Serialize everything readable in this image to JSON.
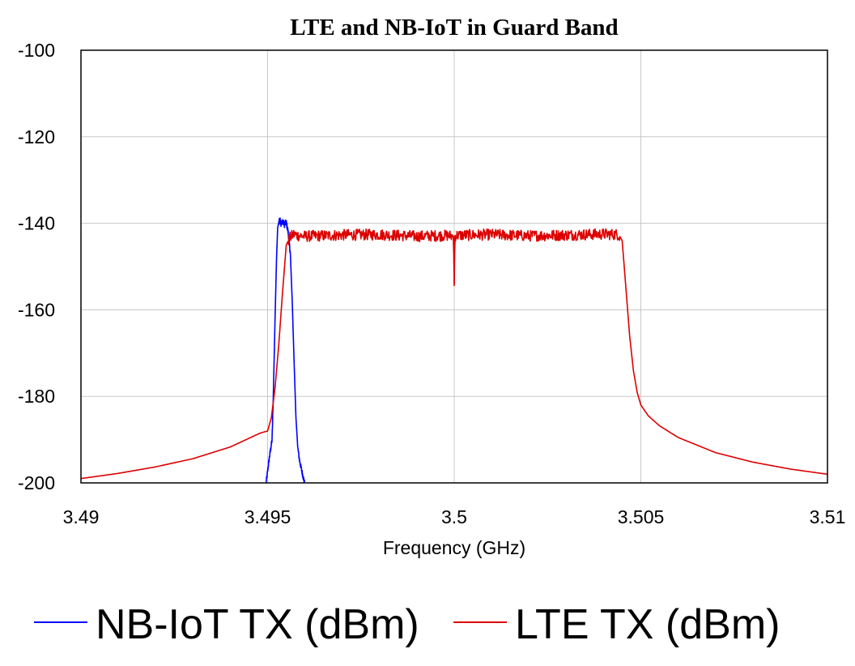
{
  "chart_data": {
    "type": "line",
    "title": "LTE and NB-IoT in Guard Band",
    "xlabel": "Frequency (GHz)",
    "ylabel": "",
    "xlim": [
      3.49,
      3.51
    ],
    "ylim": [
      -200,
      -100
    ],
    "x_ticks": [
      3.49,
      3.495,
      3.5,
      3.505,
      3.51
    ],
    "x_tick_labels": [
      "3.49",
      "3.495",
      "3.5",
      "3.505",
      "3.51"
    ],
    "y_ticks": [
      -100,
      -120,
      -140,
      -160,
      -180,
      -200
    ],
    "y_tick_labels": [
      "-100",
      "-120",
      "-140",
      "-160",
      "-180",
      "-200"
    ],
    "grid": true,
    "legend_position": "bottom",
    "series": [
      {
        "name": "NB-IoT TX (dBm)",
        "color": "#0000ff",
        "x": [
          3.49496,
          3.49505,
          3.49512,
          3.49515,
          3.4952,
          3.49524,
          3.49527,
          3.49532,
          3.49536,
          3.49541,
          3.49545,
          3.4955,
          3.49555,
          3.49561,
          3.49566,
          3.49571,
          3.49576,
          3.49581,
          3.49586,
          3.49591,
          3.49595,
          3.49599
        ],
        "y": [
          -200,
          -194,
          -190,
          -181,
          -162,
          -148,
          -141,
          -139,
          -140,
          -139.5,
          -140.3,
          -139.8,
          -142,
          -147,
          -158,
          -172,
          -185,
          -192,
          -195,
          -197,
          -198.5,
          -200
        ]
      },
      {
        "name": "LTE TX (dBm)",
        "color": "#dd0000",
        "x": [
          3.49,
          3.491,
          3.492,
          3.493,
          3.494,
          3.4945,
          3.4948,
          3.495,
          3.4951,
          3.4952,
          3.4953,
          3.4954,
          3.4955,
          3.4956,
          3.4957,
          3.4958,
          3.496,
          3.497,
          3.498,
          3.499,
          3.4998,
          3.49998,
          3.5,
          3.50002,
          3.5005,
          3.501,
          3.502,
          3.503,
          3.504,
          3.5044,
          3.5045,
          3.5046,
          3.5047,
          3.5048,
          3.5049,
          3.505,
          3.5052,
          3.5055,
          3.506,
          3.507,
          3.508,
          3.509,
          3.51
        ],
        "y": [
          -199,
          -197.8,
          -196.3,
          -194.4,
          -191.7,
          -189.7,
          -188.5,
          -188,
          -185,
          -178,
          -168,
          -156,
          -145,
          -143.3,
          -142.5,
          -142.8,
          -143,
          -142.7,
          -142.6,
          -143,
          -142.8,
          -143,
          -154,
          -142.8,
          -142.7,
          -142.6,
          -142.9,
          -142.7,
          -142.5,
          -142.6,
          -144,
          -155,
          -166,
          -174,
          -179,
          -182,
          -184.5,
          -186.8,
          -189.5,
          -193,
          -195.2,
          -196.8,
          -198
        ]
      }
    ]
  }
}
